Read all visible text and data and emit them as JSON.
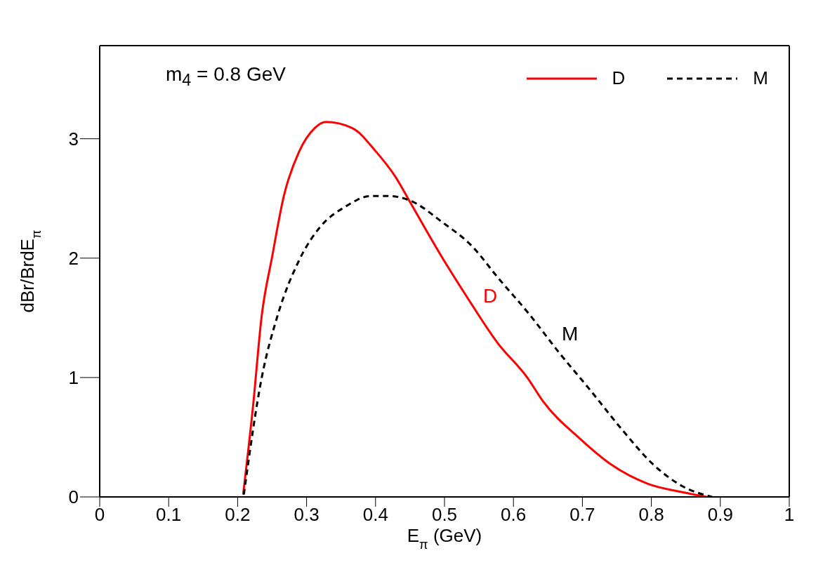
{
  "chart_data": {
    "type": "line",
    "xlabel": "E$_{π}$ (GeV)",
    "ylabel": "dBr/BrdE$_{π}$",
    "xlim": [
      0,
      1
    ],
    "ylim": [
      0,
      3.78
    ],
    "xticks": [
      0,
      0.1,
      0.2,
      0.3,
      0.4,
      0.5,
      0.6,
      0.7,
      0.8,
      0.9,
      1
    ],
    "yticks": [
      0,
      1,
      2,
      3
    ],
    "legend": "top right",
    "marker": "none",
    "series": [
      {
        "name": "D",
        "color": "#ff0000",
        "line_style": "solid",
        "x": [
          0.208,
          0.222,
          0.235,
          0.25,
          0.267,
          0.289,
          0.312,
          0.328,
          0.366,
          0.401,
          0.429,
          0.451,
          0.493,
          0.532,
          0.577,
          0.62,
          0.643,
          0.696,
          0.742,
          0.795,
          0.845,
          0.88
        ],
        "values": [
          0.02,
          0.74,
          1.52,
          2.01,
          2.52,
          2.89,
          3.09,
          3.14,
          3.09,
          2.89,
          2.68,
          2.46,
          2.04,
          1.68,
          1.29,
          1.0,
          0.8,
          0.49,
          0.27,
          0.11,
          0.04,
          0.0
        ]
      },
      {
        "name": "M",
        "color": "#000000",
        "line_style": "dashed",
        "x": [
          0.209,
          0.235,
          0.258,
          0.289,
          0.321,
          0.356,
          0.393,
          0.42,
          0.451,
          0.497,
          0.54,
          0.577,
          0.623,
          0.666,
          0.712,
          0.758,
          0.803,
          0.845,
          0.888
        ],
        "values": [
          0.02,
          1.0,
          1.52,
          1.98,
          2.27,
          2.43,
          2.52,
          2.52,
          2.48,
          2.3,
          2.1,
          1.84,
          1.53,
          1.21,
          0.89,
          0.56,
          0.27,
          0.09,
          0.0
        ]
      }
    ],
    "annotations": [
      "m$_{4}$ = 0.8 GeV",
      "D",
      "M"
    ]
  }
}
